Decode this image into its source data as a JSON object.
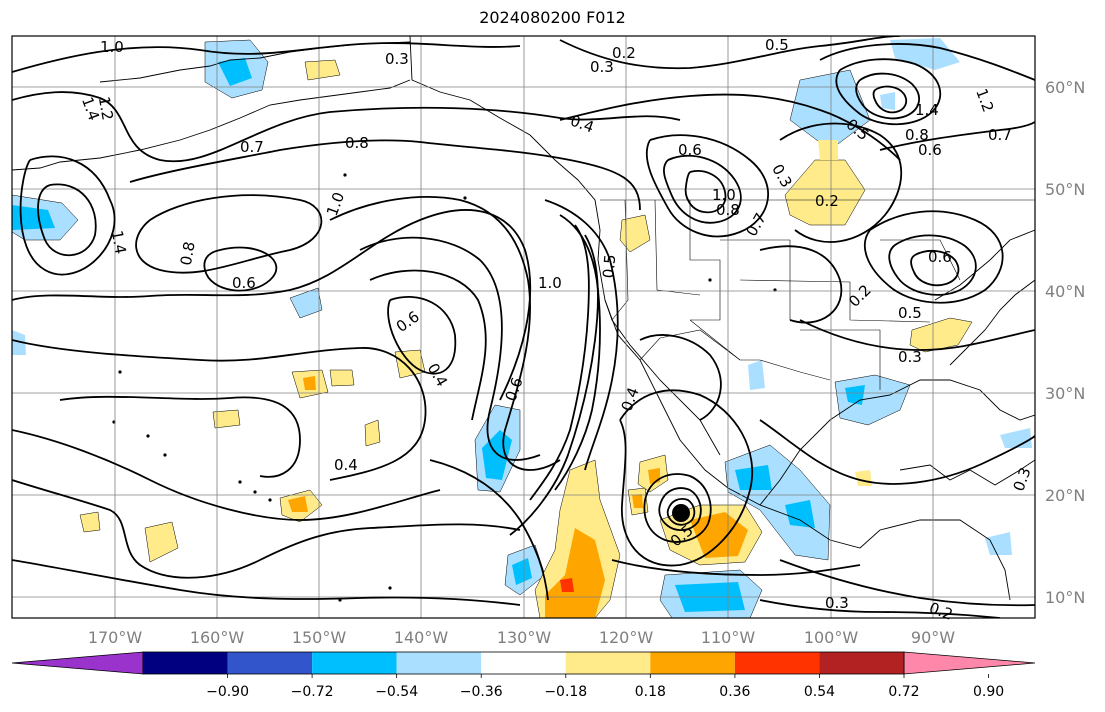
{
  "title": "2024080200 F012",
  "lon_labels": [
    "170°W",
    "160°W",
    "150°W",
    "140°W",
    "130°W",
    "120°W",
    "110°W",
    "100°W",
    "90°W"
  ],
  "lat_labels": [
    "60°N",
    "50°N",
    "40°N",
    "30°N",
    "20°N",
    "10°N"
  ],
  "colorbar": {
    "colors": [
      "#9933cc",
      "#000080",
      "#3355cc",
      "#00bfff",
      "#aadfff",
      "#ffffff",
      "#ffeb8a",
      "#ffa500",
      "#ff3300",
      "#b22222",
      "#ff88aa"
    ],
    "tick_labels": [
      "−0.90",
      "−0.72",
      "−0.54",
      "−0.36",
      "−0.18",
      "0.18",
      "0.36",
      "0.54",
      "0.72",
      "0.90"
    ]
  },
  "contour_labels": [
    {
      "text": "1.0"
    },
    {
      "text": "0.3"
    },
    {
      "text": "0.2"
    },
    {
      "text": "0.3"
    },
    {
      "text": "0.5"
    },
    {
      "text": "0.7"
    },
    {
      "text": "1.0"
    },
    {
      "text": "1.2"
    },
    {
      "text": "1.4"
    },
    {
      "text": "0.8"
    },
    {
      "text": "0.6"
    },
    {
      "text": "0.7"
    },
    {
      "text": "0.8"
    },
    {
      "text": "0.4"
    },
    {
      "text": "0.6"
    },
    {
      "text": "1.0"
    },
    {
      "text": "0.8"
    },
    {
      "text": "0.8"
    },
    {
      "text": "0.6"
    },
    {
      "text": "1.0"
    },
    {
      "text": "0.5"
    },
    {
      "text": "0.6"
    },
    {
      "text": "0.4"
    },
    {
      "text": "0.6"
    },
    {
      "text": "0.4"
    },
    {
      "text": "0.4"
    },
    {
      "text": "0.3"
    },
    {
      "text": "0.2"
    },
    {
      "text": "0.5"
    },
    {
      "text": "0.2"
    },
    {
      "text": "0.3"
    },
    {
      "text": "0.5"
    },
    {
      "text": "0.3"
    },
    {
      "text": "0.6"
    },
    {
      "text": "0.7"
    },
    {
      "text": "0.2"
    },
    {
      "text": "0.3"
    },
    {
      "text": "1.4"
    },
    {
      "text": "1.2"
    },
    {
      "text": "1.4"
    },
    {
      "text": "0.5"
    }
  ]
}
